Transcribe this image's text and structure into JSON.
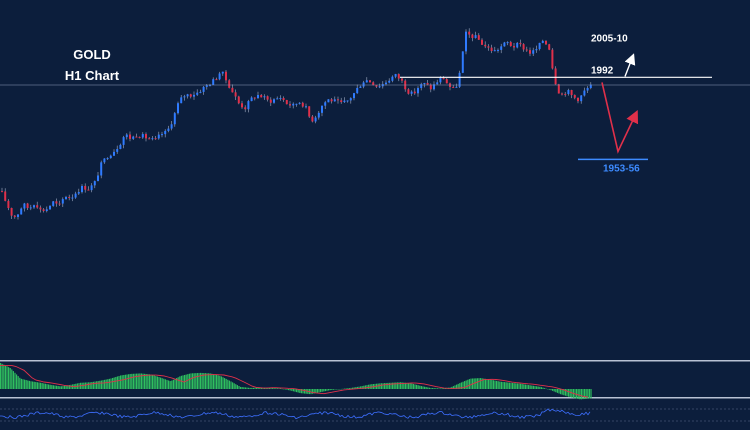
{
  "chart_data": {
    "type": "candlestick",
    "title": "GOLD",
    "subtitle": "H1 Chart",
    "colors": {
      "background": "#0c1e3c",
      "bull": "#2f7bff",
      "bear": "#e0304a",
      "wick": "#c8d2e8",
      "level_line": "#ffffff",
      "target_line": "#3d8bff",
      "arrow_up": "#ffffff",
      "arrow_path": "#e0304a",
      "macd_bar": "#2fbf5f",
      "macd_signal": "#e0304a",
      "oscillator": "#3d6fff"
    },
    "price_range": [
      1925,
      2020
    ],
    "levels": [
      {
        "label": "1992",
        "value": 1992,
        "style": "solid"
      },
      {
        "label": "1953-56",
        "value": 1954.5,
        "style": "solid"
      }
    ],
    "annotations": [
      {
        "label": "2005-10",
        "value": 2007,
        "direction": "up"
      }
    ],
    "projection": {
      "start": 1991.5,
      "low": 1954.5,
      "end": 1979
    },
    "series": [
      {
        "name": "price",
        "anchors": [
          [
            0,
            1940
          ],
          [
            4,
            1936
          ],
          [
            8,
            1932
          ],
          [
            12,
            1928
          ],
          [
            16,
            1929
          ],
          [
            22,
            1934
          ],
          [
            28,
            1932
          ],
          [
            34,
            1935
          ],
          [
            40,
            1931
          ],
          [
            46,
            1932
          ],
          [
            52,
            1935
          ],
          [
            58,
            1933
          ],
          [
            64,
            1938
          ],
          [
            70,
            1937
          ],
          [
            76,
            1940
          ],
          [
            82,
            1942
          ],
          [
            88,
            1941
          ],
          [
            94,
            1944
          ],
          [
            100,
            1952
          ],
          [
            106,
            1956
          ],
          [
            112,
            1958
          ],
          [
            118,
            1961
          ],
          [
            124,
            1966
          ],
          [
            130,
            1964
          ],
          [
            136,
            1966
          ],
          [
            142,
            1965
          ],
          [
            148,
            1964
          ],
          [
            154,
            1963
          ],
          [
            160,
            1966
          ],
          [
            166,
            1967
          ],
          [
            172,
            1973
          ],
          [
            178,
            1981
          ],
          [
            184,
            1984
          ],
          [
            190,
            1984
          ],
          [
            196,
            1985
          ],
          [
            202,
            1987
          ],
          [
            208,
            1989
          ],
          [
            214,
            1991
          ],
          [
            220,
            1995
          ],
          [
            226,
            1990
          ],
          [
            232,
            1985
          ],
          [
            238,
            1980
          ],
          [
            244,
            1978
          ],
          [
            250,
            1982
          ],
          [
            256,
            1984
          ],
          [
            262,
            1983
          ],
          [
            268,
            1981
          ],
          [
            274,
            1982
          ],
          [
            280,
            1983
          ],
          [
            286,
            1980
          ],
          [
            292,
            1979
          ],
          [
            298,
            1981
          ],
          [
            304,
            1979
          ],
          [
            310,
            1972
          ],
          [
            316,
            1975
          ],
          [
            322,
            1980
          ],
          [
            328,
            1982
          ],
          [
            334,
            1981
          ],
          [
            340,
            1980
          ],
          [
            346,
            1981
          ],
          [
            352,
            1984
          ],
          [
            358,
            1988
          ],
          [
            364,
            1991
          ],
          [
            370,
            1990
          ],
          [
            376,
            1988
          ],
          [
            382,
            1989
          ],
          [
            388,
            1991
          ],
          [
            394,
            1993
          ],
          [
            400,
            1991
          ],
          [
            406,
            1986
          ],
          [
            412,
            1984
          ],
          [
            418,
            1988
          ],
          [
            424,
            1989
          ],
          [
            430,
            1987
          ],
          [
            436,
            1990
          ],
          [
            442,
            1992
          ],
          [
            448,
            1988
          ],
          [
            454,
            1986
          ],
          [
            460,
            1996
          ],
          [
            464,
            2012
          ],
          [
            470,
            2011
          ],
          [
            476,
            2010
          ],
          [
            482,
            2007
          ],
          [
            488,
            2005
          ],
          [
            494,
            2004
          ],
          [
            500,
            2006
          ],
          [
            506,
            2008
          ],
          [
            512,
            2006
          ],
          [
            518,
            2007
          ],
          [
            524,
            2005
          ],
          [
            530,
            2003
          ],
          [
            536,
            2005
          ],
          [
            542,
            2009
          ],
          [
            548,
            2006
          ],
          [
            552,
            1995
          ],
          [
            556,
            1987
          ],
          [
            560,
            1984
          ],
          [
            566,
            1986
          ],
          [
            572,
            1983
          ],
          [
            578,
            1982
          ],
          [
            584,
            1986
          ],
          [
            590,
            1988
          ]
        ]
      }
    ],
    "macd": {
      "anchors": [
        [
          0,
          5
        ],
        [
          10,
          4
        ],
        [
          20,
          2
        ],
        [
          30,
          1.5
        ],
        [
          40,
          1.2
        ],
        [
          50,
          0.8
        ],
        [
          60,
          0.5
        ],
        [
          70,
          0.8
        ],
        [
          80,
          1.2
        ],
        [
          90,
          1.3
        ],
        [
          100,
          1.6
        ],
        [
          110,
          2.0
        ],
        [
          120,
          2.6
        ],
        [
          130,
          2.9
        ],
        [
          140,
          3.0
        ],
        [
          150,
          2.8
        ],
        [
          160,
          2.2
        ],
        [
          170,
          1.5
        ],
        [
          180,
          2.5
        ],
        [
          190,
          3.0
        ],
        [
          200,
          3.1
        ],
        [
          210,
          3.0
        ],
        [
          220,
          2.5
        ],
        [
          230,
          1.5
        ],
        [
          240,
          0.4
        ],
        [
          250,
          0.2
        ],
        [
          260,
          0.3
        ],
        [
          270,
          0.2
        ],
        [
          280,
          0.1
        ],
        [
          290,
          -0.3
        ],
        [
          300,
          -0.8
        ],
        [
          310,
          -1.0
        ],
        [
          320,
          -0.6
        ],
        [
          330,
          -0.2
        ],
        [
          340,
          0.0
        ],
        [
          350,
          0.2
        ],
        [
          360,
          0.5
        ],
        [
          370,
          0.9
        ],
        [
          380,
          1.1
        ],
        [
          390,
          1.2
        ],
        [
          400,
          1.3
        ],
        [
          410,
          1.1
        ],
        [
          420,
          0.6
        ],
        [
          430,
          0.2
        ],
        [
          440,
          0.1
        ],
        [
          450,
          0.3
        ],
        [
          460,
          1.2
        ],
        [
          470,
          2.0
        ],
        [
          480,
          2.1
        ],
        [
          490,
          1.8
        ],
        [
          500,
          1.4
        ],
        [
          510,
          1.2
        ],
        [
          520,
          1.0
        ],
        [
          530,
          0.7
        ],
        [
          540,
          0.4
        ],
        [
          550,
          -0.2
        ],
        [
          560,
          -1.0
        ],
        [
          570,
          -1.6
        ],
        [
          580,
          -2.0
        ],
        [
          590,
          -1.8
        ]
      ]
    }
  }
}
